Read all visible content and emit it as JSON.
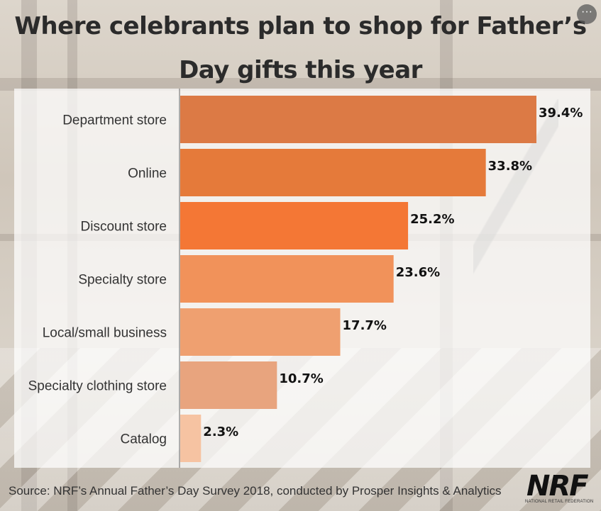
{
  "header": {
    "title_line1": "Where celebrants plan to shop for Father’s",
    "title_line2": "Day gifts this year",
    "more_icon": "ellipsis-icon",
    "more_label": "···"
  },
  "footer": {
    "source": "Source: NRF’s Annual Father’s Day Survey 2018, conducted by Prosper Insights & Analytics",
    "logo_text": "NRF",
    "logo_subtext": "NATIONAL RETAIL FEDERATION"
  },
  "chart_data": {
    "type": "bar",
    "orientation": "horizontal",
    "title": "Where celebrants plan to shop for Father’s Day gifts this year",
    "categories": [
      "Department store",
      "Online",
      "Discount store",
      "Specialty store",
      "Local/small business",
      "Specialty clothing store",
      "Catalog"
    ],
    "values": [
      39.4,
      33.8,
      25.2,
      23.6,
      17.7,
      10.7,
      2.3
    ],
    "value_labels": [
      "39.4%",
      "33.8%",
      "25.2%",
      "23.6%",
      "17.7%",
      "10.7%",
      "2.3%"
    ],
    "bar_colors": [
      "#dc7a45",
      "#e57a3a",
      "#f47735",
      "#f1925a",
      "#efa070",
      "#e8a47e",
      "#f6c3a2"
    ],
    "xlim": [
      0,
      40
    ],
    "grid": false,
    "legend": "none"
  }
}
